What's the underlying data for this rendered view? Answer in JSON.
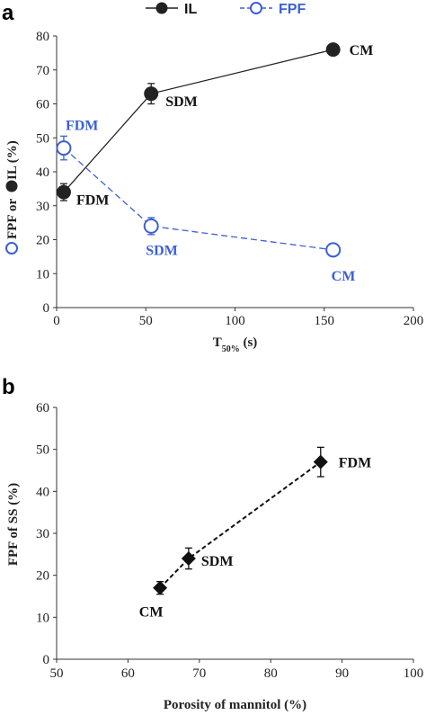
{
  "chart_data": [
    {
      "panel": "a",
      "type": "line",
      "xlabel_main": "T",
      "xlabel_sub": "50%",
      "xlabel_unit": " (s)",
      "ylabel_fpf": "FPF",
      "ylabel_or": " or ",
      "ylabel_il": " IL (%)",
      "xlim": [
        0,
        200
      ],
      "ylim": [
        0,
        80
      ],
      "xticks": [
        0,
        50,
        100,
        150,
        200
      ],
      "xtick_labels": [
        "0",
        "50",
        "100",
        "150",
        "200"
      ],
      "yticks": [
        0,
        10,
        20,
        30,
        40,
        50,
        60,
        70,
        80
      ],
      "ytick_labels": [
        "0",
        "10",
        "20",
        "30",
        "40",
        "50",
        "60",
        "70",
        "80"
      ],
      "legend_position": "top",
      "series": [
        {
          "name": "IL",
          "color": "#222222",
          "marker": "filled-circle",
          "line": "solid",
          "points": [
            {
              "x": 4,
              "y": 34,
              "err": 2.5,
              "label": "FDM"
            },
            {
              "x": 53,
              "y": 63,
              "err": 3.0,
              "label": "SDM"
            },
            {
              "x": 155,
              "y": 76,
              "err": 1.0,
              "label": "CM"
            }
          ]
        },
        {
          "name": "FPF",
          "color": "#3b5fd9",
          "marker": "open-circle",
          "line": "dashed",
          "points": [
            {
              "x": 4,
              "y": 47,
              "err": 3.5,
              "label": "FDM"
            },
            {
              "x": 53,
              "y": 24,
              "err": 2.5,
              "label": "SDM"
            },
            {
              "x": 155,
              "y": 17,
              "err": 1.0,
              "label": "CM"
            }
          ]
        }
      ]
    },
    {
      "panel": "b",
      "type": "scatter",
      "xlabel": "Porosity of mannitol (%)",
      "ylabel": "FPF of SS (%)",
      "xlim": [
        50,
        100
      ],
      "ylim": [
        0,
        60
      ],
      "xticks": [
        50,
        60,
        70,
        80,
        90,
        100
      ],
      "xtick_labels": [
        "50",
        "60",
        "70",
        "80",
        "90",
        "100"
      ],
      "yticks": [
        0,
        10,
        20,
        30,
        40,
        50,
        60
      ],
      "ytick_labels": [
        "0",
        "10",
        "20",
        "30",
        "40",
        "50",
        "60"
      ],
      "series": [
        {
          "color": "#111111",
          "marker": "filled-diamond",
          "trendline": "dashed",
          "points": [
            {
              "x": 64.5,
              "y": 17,
              "err": 1.5,
              "label": "CM"
            },
            {
              "x": 68.5,
              "y": 24,
              "err": 2.5,
              "label": "SDM"
            },
            {
              "x": 87,
              "y": 47,
              "err": 3.5,
              "label": "FDM"
            }
          ]
        }
      ]
    }
  ]
}
